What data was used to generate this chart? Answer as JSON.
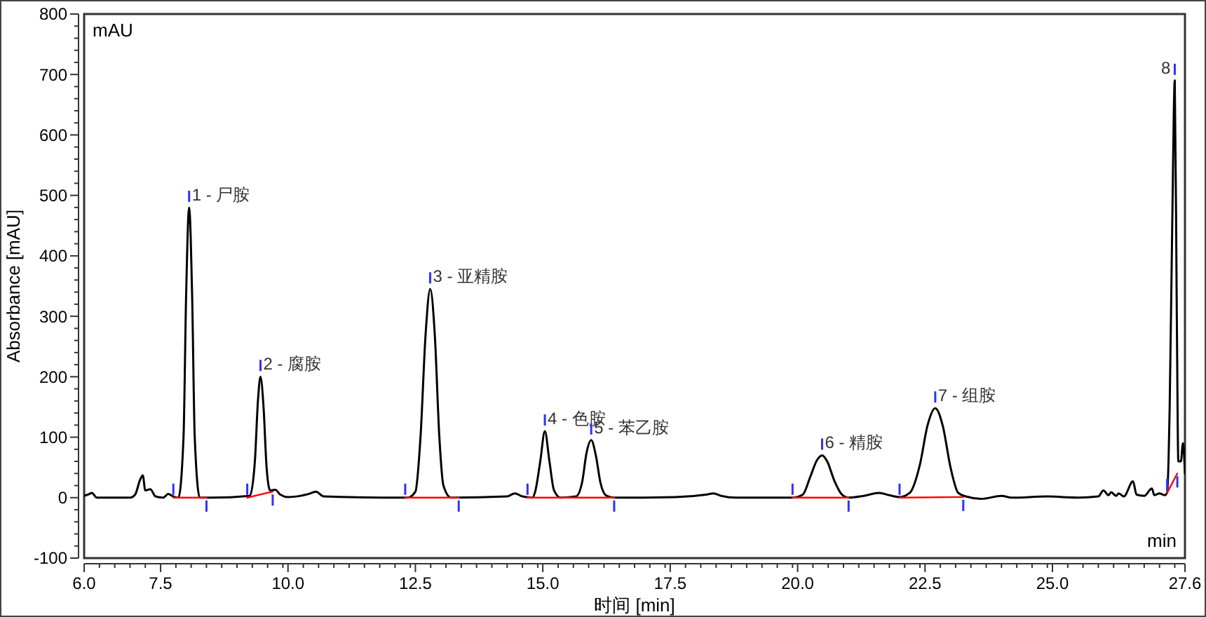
{
  "chart_data": {
    "type": "line",
    "xlabel": "时间 [min]",
    "ylabel": "Absorbance [mAU]",
    "xlim": [
      6.0,
      27.6
    ],
    "ylim": [
      -100,
      800
    ],
    "xticks": [
      {
        "value": 6,
        "label": "6.0"
      },
      {
        "value": 7.5,
        "label": "7.5"
      },
      {
        "value": 10,
        "label": "10.0"
      },
      {
        "value": 12.5,
        "label": "12.5"
      },
      {
        "value": 15,
        "label": "15.0"
      },
      {
        "value": 17.5,
        "label": "17.5"
      },
      {
        "value": 20,
        "label": "20.0"
      },
      {
        "value": 22.5,
        "label": "22.5"
      },
      {
        "value": 25,
        "label": "25.0"
      },
      27.6
    ],
    "yticks": [
      -100,
      0,
      100,
      200,
      300,
      400,
      500,
      600,
      700,
      800
    ],
    "grid": false,
    "marker": "none",
    "line_style": "solid",
    "series": [
      {
        "color": "#000000",
        "x": [
          6.0,
          6.1,
          6.15,
          6.25,
          6.9,
          7.0,
          7.1,
          7.15,
          7.2,
          7.3,
          7.4,
          7.55,
          7.65,
          7.75,
          7.85,
          7.95,
          8.0,
          8.06,
          8.12,
          8.17,
          8.27,
          8.5,
          9.25,
          9.35,
          9.41,
          9.46,
          9.52,
          9.58,
          9.65,
          9.75,
          9.85,
          10.0,
          10.4,
          10.55,
          10.7,
          12.35,
          12.5,
          12.6,
          12.7,
          12.79,
          12.88,
          12.97,
          13.05,
          13.2,
          14.3,
          14.45,
          14.6,
          14.8,
          14.85,
          14.95,
          15.04,
          15.13,
          15.22,
          15.35,
          15.65,
          15.77,
          15.86,
          15.95,
          16.04,
          16.13,
          16.25,
          16.4,
          17.6,
          18.2,
          18.35,
          18.5,
          18.8,
          19.9,
          20.1,
          20.25,
          20.38,
          20.48,
          20.58,
          20.72,
          20.87,
          21.0,
          21.3,
          21.6,
          21.8,
          22.0,
          22.2,
          22.4,
          22.55,
          22.7,
          22.85,
          23.0,
          23.15,
          23.3,
          23.6,
          24.0,
          24.2,
          24.9,
          25.5,
          25.9,
          26.0,
          26.1,
          26.15,
          26.25,
          26.3,
          26.4,
          26.58,
          26.65,
          26.8,
          26.95,
          27.0,
          27.1,
          27.2,
          27.25,
          27.3,
          27.35,
          27.4,
          27.44,
          27.47,
          27.52,
          27.56,
          27.6
        ],
        "values": [
          3,
          6,
          8,
          0,
          0,
          5,
          30,
          37,
          12,
          14,
          2,
          0,
          6,
          2,
          0,
          100,
          330,
          480,
          330,
          100,
          0,
          0,
          3,
          60,
          160,
          200,
          150,
          50,
          12,
          13,
          5,
          1,
          6,
          10,
          2,
          0,
          10,
          100,
          270,
          345,
          270,
          100,
          20,
          0,
          2,
          7,
          2,
          0,
          10,
          60,
          110,
          60,
          12,
          0,
          2,
          25,
          75,
          95,
          70,
          25,
          3,
          0,
          1,
          5,
          7,
          3,
          0,
          0,
          5,
          35,
          62,
          70,
          60,
          28,
          5,
          0,
          3,
          8,
          4,
          1,
          8,
          55,
          120,
          148,
          118,
          50,
          8,
          2,
          -2,
          3,
          0,
          2,
          0,
          2,
          12,
          4,
          9,
          3,
          7,
          2,
          27,
          5,
          3,
          15,
          4,
          7,
          4,
          8,
          150,
          450,
          690,
          300,
          60,
          60,
          90,
          40
        ]
      },
      {
        "color": "#ff0000",
        "x": [
          7.75,
          8.4,
          8.8,
          9.2,
          9.7,
          11,
          12.3,
          13.35,
          14,
          14.7,
          15.5,
          16.4,
          18,
          19.9,
          21.0,
          21.5,
          22.0,
          23.25,
          25,
          27.25,
          27.45
        ],
        "values": [
          0,
          0,
          null,
          0,
          10,
          null,
          0,
          0,
          null,
          0,
          0,
          0,
          null,
          0,
          0,
          null,
          0,
          1,
          null,
          8,
          40
        ]
      }
    ],
    "annotations": [
      "mAU",
      "min",
      {
        "text": "1 - 尸胺",
        "x": 8.06,
        "y": 480
      },
      {
        "text": "2 - 腐胺",
        "x": 9.46,
        "y": 200
      },
      {
        "text": "3 - 亚精胺",
        "x": 12.79,
        "y": 345
      },
      {
        "text": "4 - 色胺",
        "x": 15.04,
        "y": 110
      },
      {
        "text": "5 - 苯乙胺",
        "x": 15.95,
        "y": 95
      },
      {
        "text": "6 - 精胺",
        "x": 20.48,
        "y": 70
      },
      {
        "text": "7 - 组胺",
        "x": 22.7,
        "y": 148
      },
      {
        "text": "8",
        "x": 27.4,
        "y": 690
      }
    ]
  }
}
